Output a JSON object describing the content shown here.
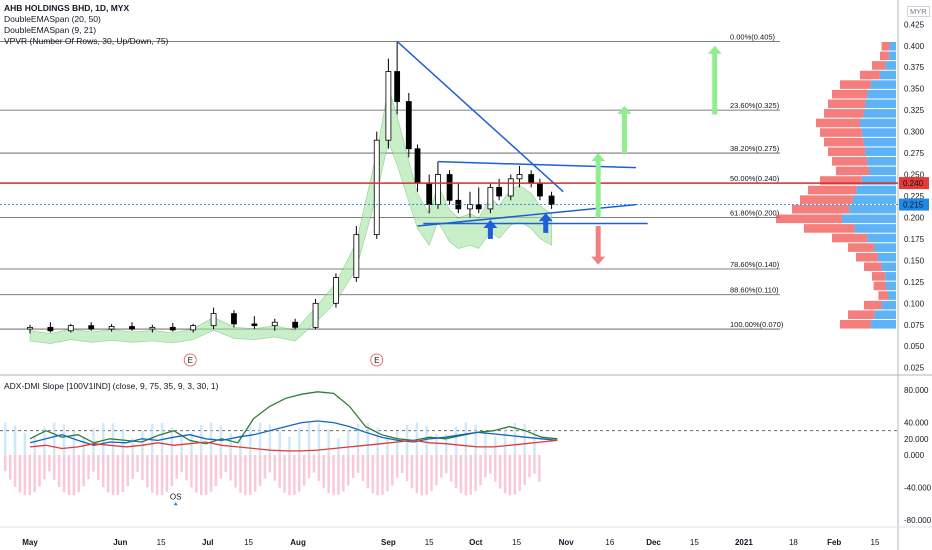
{
  "header": {
    "title": "AHB HOLDINGS BHD, 1D, MYX",
    "indicators": [
      "DoubleEMASpan (20, 50)",
      "DoubleEMASpan (9, 21)",
      "VPVR (Number Of Rows, 30, Up/Down, 75)"
    ],
    "currency": "MYR",
    "lower_indicator": "ADX-DMI Slope [100V1IND] (close, 9, 75, 35, 9, 3, 30, 1)"
  },
  "colors": {
    "up_arrow": "#90ee90",
    "down_arrow": "#f08080",
    "trendline": "#1e5fd8",
    "price_line": "#d32f2f",
    "vp_up": "#42a5f5",
    "vp_down": "#ef5350",
    "ema_fill": "#a5e6a5",
    "current_price_bg": "#1e88e5",
    "ref_price_bg": "#e53935"
  },
  "chart_data": [
    {
      "type": "candlestick",
      "title": "AHB HOLDINGS BHD, 1D, MYX",
      "y_axis": {
        "ticks": [
          "0.425",
          "0.400",
          "0.375",
          "0.350",
          "0.325",
          "0.300",
          "0.275",
          "0.250",
          "0.225",
          "0.200",
          "0.175",
          "0.150",
          "0.125",
          "0.100",
          "0.075",
          "0.050",
          "0.025"
        ],
        "tick_values": [
          0.425,
          0.4,
          0.375,
          0.35,
          0.325,
          0.3,
          0.275,
          0.25,
          0.225,
          0.2,
          0.175,
          0.15,
          0.125,
          0.1,
          0.075,
          0.05,
          0.025
        ],
        "ylim": [
          0.02,
          0.43
        ]
      },
      "x_axis": {
        "ticks": [
          "May",
          "Jun",
          "15",
          "Jul",
          "15",
          "Aug",
          "Sep",
          "15",
          "Oct",
          "15",
          "Nov",
          "16",
          "Dec",
          "15",
          "2021",
          "18",
          "Feb",
          "15"
        ],
        "tick_dates": [
          "2020-05-01",
          "2020-06-01",
          "2020-06-15",
          "2020-07-01",
          "2020-07-15",
          "2020-08-01",
          "2020-09-01",
          "2020-09-15",
          "2020-10-01",
          "2020-10-15",
          "2020-11-01",
          "2020-11-16",
          "2020-12-01",
          "2020-12-15",
          "2021-01-01",
          "2021-01-18",
          "2021-02-01",
          "2021-02-15"
        ]
      },
      "fib_levels": [
        {
          "label": "0.00%(0.405)",
          "price": 0.405
        },
        {
          "label": "23.60%(0.325)",
          "price": 0.325
        },
        {
          "label": "38.20%(0.275)",
          "price": 0.275
        },
        {
          "label": "50.00%(0.240)",
          "price": 0.24
        },
        {
          "label": "61.80%(0.200)",
          "price": 0.2
        },
        {
          "label": "78.60%(0.140)",
          "price": 0.14
        },
        {
          "label": "88.60%(0.110)",
          "price": 0.11
        },
        {
          "label": "100.00%(0.070)",
          "price": 0.07
        }
      ],
      "price_labels": [
        {
          "text": "0.240",
          "price": 0.24,
          "kind": "reference"
        },
        {
          "text": "0.215",
          "price": 0.215,
          "kind": "current"
        }
      ],
      "events": [
        {
          "text": "E",
          "date": "2020-06-25"
        },
        {
          "text": "E",
          "date": "2020-08-28"
        }
      ],
      "candles": [
        {
          "date": "2020-05-01",
          "o": 0.07,
          "h": 0.075,
          "l": 0.065,
          "c": 0.072
        },
        {
          "date": "2020-05-08",
          "o": 0.072,
          "h": 0.078,
          "l": 0.066,
          "c": 0.068
        },
        {
          "date": "2020-05-15",
          "o": 0.068,
          "h": 0.076,
          "l": 0.066,
          "c": 0.074
        },
        {
          "date": "2020-05-22",
          "o": 0.074,
          "h": 0.078,
          "l": 0.068,
          "c": 0.07
        },
        {
          "date": "2020-05-29",
          "o": 0.07,
          "h": 0.076,
          "l": 0.067,
          "c": 0.073
        },
        {
          "date": "2020-06-05",
          "o": 0.073,
          "h": 0.078,
          "l": 0.068,
          "c": 0.07
        },
        {
          "date": "2020-06-12",
          "o": 0.07,
          "h": 0.075,
          "l": 0.066,
          "c": 0.072
        },
        {
          "date": "2020-06-19",
          "o": 0.072,
          "h": 0.077,
          "l": 0.067,
          "c": 0.069
        },
        {
          "date": "2020-06-26",
          "o": 0.069,
          "h": 0.076,
          "l": 0.066,
          "c": 0.074
        },
        {
          "date": "2020-07-03",
          "o": 0.074,
          "h": 0.095,
          "l": 0.07,
          "c": 0.088
        },
        {
          "date": "2020-07-10",
          "o": 0.088,
          "h": 0.092,
          "l": 0.072,
          "c": 0.076
        },
        {
          "date": "2020-07-17",
          "o": 0.076,
          "h": 0.085,
          "l": 0.07,
          "c": 0.074
        },
        {
          "date": "2020-07-24",
          "o": 0.074,
          "h": 0.082,
          "l": 0.068,
          "c": 0.078
        },
        {
          "date": "2020-07-31",
          "o": 0.078,
          "h": 0.082,
          "l": 0.07,
          "c": 0.072
        },
        {
          "date": "2020-08-07",
          "o": 0.072,
          "h": 0.105,
          "l": 0.07,
          "c": 0.1
        },
        {
          "date": "2020-08-14",
          "o": 0.1,
          "h": 0.135,
          "l": 0.095,
          "c": 0.13
        },
        {
          "date": "2020-08-21",
          "o": 0.13,
          "h": 0.19,
          "l": 0.125,
          "c": 0.18
        },
        {
          "date": "2020-08-28",
          "o": 0.18,
          "h": 0.3,
          "l": 0.175,
          "c": 0.29
        },
        {
          "date": "2020-09-01",
          "o": 0.29,
          "h": 0.385,
          "l": 0.28,
          "c": 0.37
        },
        {
          "date": "2020-09-04",
          "o": 0.37,
          "h": 0.405,
          "l": 0.32,
          "c": 0.335
        },
        {
          "date": "2020-09-08",
          "o": 0.335,
          "h": 0.345,
          "l": 0.27,
          "c": 0.28
        },
        {
          "date": "2020-09-11",
          "o": 0.28,
          "h": 0.285,
          "l": 0.23,
          "c": 0.24
        },
        {
          "date": "2020-09-15",
          "o": 0.24,
          "h": 0.25,
          "l": 0.205,
          "c": 0.215
        },
        {
          "date": "2020-09-18",
          "o": 0.215,
          "h": 0.265,
          "l": 0.21,
          "c": 0.25
        },
        {
          "date": "2020-09-22",
          "o": 0.25,
          "h": 0.255,
          "l": 0.215,
          "c": 0.22
        },
        {
          "date": "2020-09-25",
          "o": 0.22,
          "h": 0.24,
          "l": 0.205,
          "c": 0.21
        },
        {
          "date": "2020-09-29",
          "o": 0.21,
          "h": 0.23,
          "l": 0.2,
          "c": 0.215
        },
        {
          "date": "2020-10-02",
          "o": 0.215,
          "h": 0.235,
          "l": 0.205,
          "c": 0.21
        },
        {
          "date": "2020-10-06",
          "o": 0.21,
          "h": 0.24,
          "l": 0.205,
          "c": 0.235
        },
        {
          "date": "2020-10-09",
          "o": 0.235,
          "h": 0.245,
          "l": 0.22,
          "c": 0.225
        },
        {
          "date": "2020-10-13",
          "o": 0.225,
          "h": 0.25,
          "l": 0.22,
          "c": 0.245
        },
        {
          "date": "2020-10-16",
          "o": 0.245,
          "h": 0.26,
          "l": 0.235,
          "c": 0.25
        },
        {
          "date": "2020-10-20",
          "o": 0.25,
          "h": 0.255,
          "l": 0.235,
          "c": 0.24
        },
        {
          "date": "2020-10-23",
          "o": 0.24,
          "h": 0.245,
          "l": 0.22,
          "c": 0.225
        },
        {
          "date": "2020-10-27",
          "o": 0.225,
          "h": 0.23,
          "l": 0.21,
          "c": 0.215
        }
      ]
    },
    {
      "type": "line",
      "title": "ADX-DMI Slope [100V1IND] (close, 9, 75, 35, 9, 3, 30, 1)",
      "y_axis": {
        "ticks": [
          "80.000",
          "40.000",
          "20.000",
          "0.000",
          "-40.000",
          "-80.000"
        ],
        "tick_values": [
          80,
          40,
          20,
          0,
          -40,
          -80
        ],
        "ylim": [
          -95,
          95
        ]
      },
      "threshold": 30,
      "annotations": [
        {
          "text": "OS",
          "date": "2020-06-20"
        }
      ],
      "series": [
        {
          "values": [
            20,
            30,
            22,
            25,
            15,
            20,
            18,
            16,
            24,
            30,
            18,
            14,
            20,
            15,
            45,
            60,
            70,
            75,
            78,
            76,
            60,
            35,
            25,
            20,
            18,
            22,
            20,
            24,
            28,
            30,
            35,
            30,
            22,
            20
          ]
        },
        {
          "values": [
            15,
            20,
            25,
            18,
            12,
            16,
            15,
            20,
            18,
            22,
            25,
            20,
            18,
            22,
            25,
            30,
            35,
            40,
            42,
            40,
            35,
            28,
            22,
            18,
            16,
            20,
            22,
            25,
            28,
            26,
            24,
            22,
            20,
            18
          ]
        },
        {
          "values": [
            10,
            12,
            8,
            10,
            14,
            12,
            10,
            12,
            15,
            12,
            14,
            16,
            12,
            10,
            8,
            6,
            5,
            5,
            6,
            8,
            10,
            12,
            14,
            16,
            18,
            15,
            14,
            12,
            10,
            10,
            12,
            14,
            16,
            18
          ]
        }
      ]
    }
  ]
}
